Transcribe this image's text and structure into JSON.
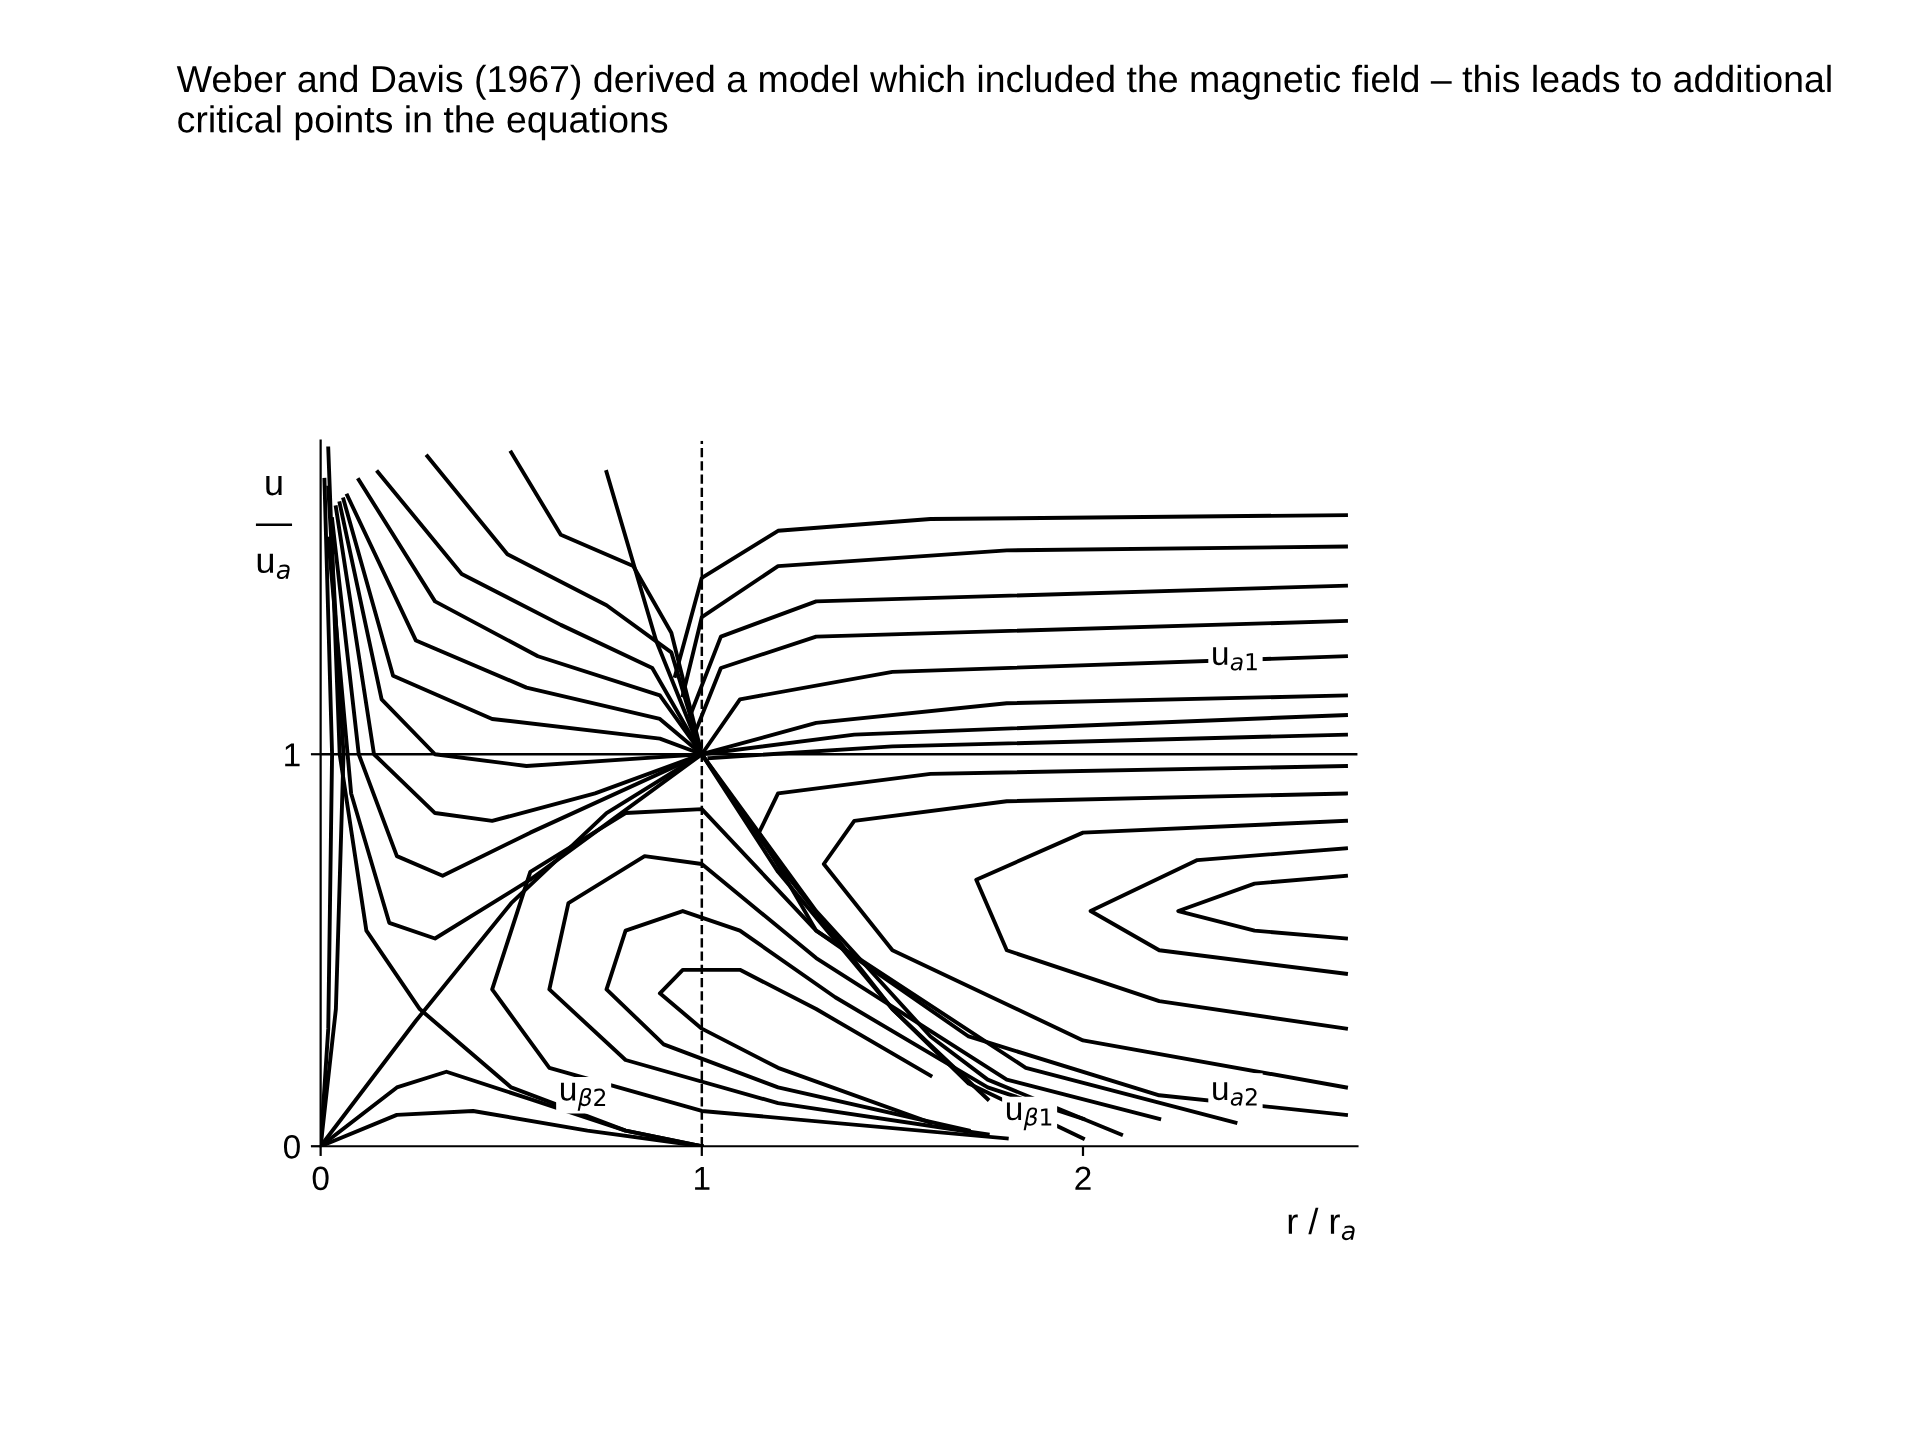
{
  "chart_data": {
    "type": "line",
    "title": "Weber and Davis (1967) derived a model which included the magnetic field – this leads to additional critical points in the equations",
    "xlabel": "r / r$_{a}$",
    "ylabel": "u\n—\nu$_{a}$",
    "xlim": [
      0,
      2.72
    ],
    "ylim": [
      0,
      1.8
    ],
    "xticks": [
      0,
      1,
      2
    ],
    "yticks": [
      0,
      1
    ],
    "grid": false,
    "marker": "none",
    "line_style": "solid",
    "ref_lines": [
      {
        "axis": "x",
        "value": 1,
        "line_style": "dashed",
        "color": "#000000"
      },
      {
        "axis": "y",
        "value": 1,
        "line_style": "solid",
        "color": "#000000"
      }
    ],
    "annotations": [
      {
        "text": "u$_{a1}$",
        "x": 2.4,
        "y": 1.25
      },
      {
        "text": "u$_{a2}$",
        "x": 2.4,
        "y": 0.14
      },
      {
        "text": "u$_{β1}$",
        "x": 1.86,
        "y": 0.08
      },
      {
        "text": "u$_{β2}$",
        "x": 0.69,
        "y": 0.13
      }
    ],
    "series": [
      {
        "color": "#000000",
        "x": [
          0.75,
          0.88,
          1,
          1.2,
          1.5,
          1.7,
          2.0
        ],
        "values": [
          1.72,
          1.29,
          1,
          0.7,
          0.35,
          0.16,
          0.02
        ]
      },
      {
        "color": "#000000",
        "x": [
          0.5,
          0.63,
          0.82,
          0.92,
          1,
          1.2,
          1.5,
          1.75
        ],
        "values": [
          1.77,
          1.56,
          1.48,
          1.31,
          1,
          0.72,
          0.35,
          0.12
        ]
      },
      {
        "color": "#000000",
        "x": [
          0.28,
          0.49,
          0.75,
          0.92,
          1,
          1.3,
          1.6,
          1.75,
          2.1
        ],
        "values": [
          1.76,
          1.51,
          1.38,
          1.26,
          1,
          0.6,
          0.28,
          0.17,
          0.03
        ]
      },
      {
        "color": "#000000",
        "x": [
          0.15,
          0.37,
          0.63,
          0.87,
          1
        ],
        "values": [
          1.72,
          1.46,
          1.33,
          1.22,
          1
        ]
      },
      {
        "color": "#000000",
        "x": [
          0.1,
          0.3,
          0.57,
          0.89,
          1,
          1.1,
          1.5,
          2.69
        ],
        "values": [
          1.7,
          1.39,
          1.25,
          1.15,
          1,
          1.14,
          1.21,
          1.25
        ]
      },
      {
        "color": "#000000",
        "x": [
          0.07,
          0.25,
          0.54,
          0.89,
          1,
          1.3,
          1.8,
          2.69
        ],
        "values": [
          1.66,
          1.29,
          1.17,
          1.09,
          1,
          1.08,
          1.13,
          1.15
        ]
      },
      {
        "color": "#000000",
        "x": [
          0.06,
          0.19,
          0.45,
          0.89,
          1,
          1.4,
          2.69
        ],
        "values": [
          1.65,
          1.2,
          1.09,
          1.04,
          1,
          1.05,
          1.1
        ]
      },
      {
        "color": "#000000",
        "x": [
          0.05,
          0.16,
          0.3,
          0.54,
          1
        ],
        "values": [
          1.64,
          1.14,
          1.0,
          0.97,
          1
        ]
      },
      {
        "color": "#000000",
        "x": [
          0.04,
          0.14,
          0.3,
          0.45,
          0.72,
          1
        ],
        "values": [
          1.63,
          1.0,
          0.85,
          0.83,
          0.9,
          1
        ]
      },
      {
        "color": "#000000",
        "x": [
          0.03,
          0.1,
          0.2,
          0.32,
          0.55,
          1
        ],
        "values": [
          1.6,
          1.0,
          0.74,
          0.69,
          0.8,
          1
        ]
      },
      {
        "color": "#000000",
        "x": [
          0.02,
          0.08,
          0.18,
          0.3,
          0.55,
          1
        ],
        "values": [
          1.55,
          0.9,
          0.57,
          0.53,
          0.68,
          1
        ]
      },
      {
        "color": "#000000",
        "x": [
          0,
          0.25,
          0.5,
          0.75,
          1
        ],
        "values": [
          0,
          0.32,
          0.62,
          0.85,
          1
        ]
      },
      {
        "color": "#000000",
        "x": [
          0.02,
          0.05,
          0.12,
          0.26,
          0.5,
          0.8,
          1
        ],
        "values": [
          1.78,
          1.0,
          0.55,
          0.35,
          0.15,
          0.04,
          0
        ]
      },
      {
        "color": "#000000",
        "x": [
          0.01,
          0.03,
          0.02,
          0
        ],
        "values": [
          1.7,
          1.0,
          0.3,
          0
        ]
      },
      {
        "color": "#000000",
        "x": [
          0.02,
          0.06,
          0.04,
          0
        ],
        "values": [
          1.68,
          1.0,
          0.35,
          0
        ]
      },
      {
        "color": "#000000",
        "x": [
          0.0,
          0.2,
          0.33,
          0.55,
          0.8,
          1
        ],
        "values": [
          0,
          0.15,
          0.19,
          0.12,
          0.04,
          0
        ]
      },
      {
        "color": "#000000",
        "x": [
          0.0,
          0.2,
          0.4,
          0.7,
          1
        ],
        "values": [
          0,
          0.08,
          0.09,
          0.04,
          0
        ]
      },
      {
        "color": "#000000",
        "x": [
          1.6,
          1.2,
          1.0,
          0.89,
          0.95,
          1.1,
          1.3,
          1.6
        ],
        "values": [
          0.06,
          0.2,
          0.3,
          0.39,
          0.45,
          0.45,
          0.35,
          0.18
        ]
      },
      {
        "color": "#000000",
        "x": [
          1.7,
          1.2,
          0.9,
          0.75,
          0.8,
          0.95,
          1.1,
          1.35,
          1.75,
          2.0
        ],
        "values": [
          0.04,
          0.15,
          0.26,
          0.4,
          0.55,
          0.6,
          0.55,
          0.38,
          0.15,
          0.07
        ]
      },
      {
        "color": "#000000",
        "x": [
          1.75,
          1.2,
          0.8,
          0.6,
          0.65,
          0.85,
          1.0,
          1.3,
          1.8,
          2.2
        ],
        "values": [
          0.03,
          0.11,
          0.22,
          0.4,
          0.62,
          0.74,
          0.72,
          0.48,
          0.17,
          0.07
        ]
      },
      {
        "color": "#000000",
        "x": [
          1.8,
          1.0,
          0.6,
          0.45,
          0.55,
          0.8,
          1.0,
          1.3,
          1.85,
          2.4
        ],
        "values": [
          0.02,
          0.09,
          0.2,
          0.4,
          0.7,
          0.85,
          0.86,
          0.55,
          0.2,
          0.06
        ]
      },
      {
        "color": "#000000",
        "x": [
          0.93,
          1.0,
          1.2,
          1.6,
          2.69
        ],
        "values": [
          1.2,
          1.45,
          1.57,
          1.6,
          1.61
        ]
      },
      {
        "color": "#000000",
        "x": [
          0.95,
          1.0,
          1.2,
          1.8,
          2.69
        ],
        "values": [
          1.15,
          1.35,
          1.48,
          1.52,
          1.53
        ]
      },
      {
        "color": "#000000",
        "x": [
          0.97,
          1.05,
          1.3,
          2.69
        ],
        "values": [
          1.1,
          1.3,
          1.39,
          1.43
        ]
      },
      {
        "color": "#000000",
        "x": [
          0.98,
          1.05,
          1.3,
          2.69
        ],
        "values": [
          1.05,
          1.22,
          1.3,
          1.34
        ]
      },
      {
        "color": "#000000",
        "x": [
          1.02,
          1.5,
          2.69
        ],
        "values": [
          0.99,
          1.02,
          1.05
        ]
      },
      {
        "color": "#000000",
        "x": [
          2.69,
          1.6,
          1.2,
          1.15,
          1.3,
          1.7,
          2.2,
          2.69
        ],
        "values": [
          0.97,
          0.95,
          0.9,
          0.8,
          0.55,
          0.28,
          0.13,
          0.08
        ]
      },
      {
        "color": "#000000",
        "x": [
          2.69,
          1.8,
          1.4,
          1.32,
          1.5,
          2.0,
          2.69
        ],
        "values": [
          0.9,
          0.88,
          0.83,
          0.72,
          0.5,
          0.27,
          0.15
        ]
      },
      {
        "color": "#000000",
        "x": [
          2.69,
          2.0,
          1.72,
          1.8,
          2.2,
          2.69
        ],
        "values": [
          0.83,
          0.8,
          0.68,
          0.5,
          0.37,
          0.3
        ]
      },
      {
        "color": "#000000",
        "x": [
          2.69,
          2.3,
          2.02,
          2.2,
          2.69
        ],
        "values": [
          0.76,
          0.73,
          0.6,
          0.5,
          0.44
        ]
      },
      {
        "color": "#000000",
        "x": [
          2.69,
          2.45,
          2.25,
          2.45,
          2.69
        ],
        "values": [
          0.69,
          0.67,
          0.6,
          0.55,
          0.53
        ]
      }
    ]
  }
}
